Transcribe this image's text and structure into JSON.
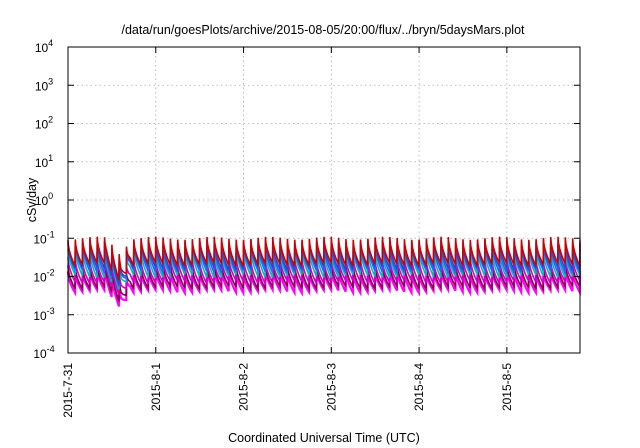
{
  "chart_data": {
    "type": "line",
    "title": "/data/run/goesPlots/archive/2015-08-05/20:00/flux/../bryn/5daysMars.plot",
    "xlabel": "Coordinated Universal Time (UTC)",
    "ylabel": "cSv/day",
    "yscale": "log",
    "ylim": [
      0.0001,
      10000
    ],
    "y_ticks": [
      {
        "base": "10",
        "exp": "-4"
      },
      {
        "base": "10",
        "exp": "-3"
      },
      {
        "base": "10",
        "exp": "-2"
      },
      {
        "base": "10",
        "exp": "-1"
      },
      {
        "base": "10",
        "exp": "0"
      },
      {
        "base": "10",
        "exp": "1"
      },
      {
        "base": "10",
        "exp": "2"
      },
      {
        "base": "10",
        "exp": "3"
      },
      {
        "base": "10",
        "exp": "4"
      }
    ],
    "xlim": [
      "2015-07-31 00:00",
      "2015-08-05 20:00"
    ],
    "x_tick_labels": [
      "2015-7-31",
      "2015-8-1",
      "2015-8-2",
      "2015-8-3",
      "2015-8-4",
      "2015-8-5"
    ],
    "grid": true,
    "legend": "none",
    "pattern": {
      "period_hours": 2,
      "series_peak_values": [
        0.1,
        0.085,
        0.07,
        0.05,
        0.03,
        0.02,
        0.015
      ],
      "series_trough_values": [
        0.02,
        0.016,
        0.013,
        0.01,
        0.007,
        0.005,
        0.004
      ],
      "dip": {
        "center": "2015-07-31 14:30",
        "min_value": 0.0013
      }
    },
    "series": [
      {
        "color": "#cc0000"
      },
      {
        "color": "#3344cc"
      },
      {
        "color": "#2266ee"
      },
      {
        "color": "#00bbbb"
      },
      {
        "color": "#cc00cc"
      },
      {
        "color": "#800040"
      },
      {
        "color": "#ff00ff"
      }
    ]
  }
}
